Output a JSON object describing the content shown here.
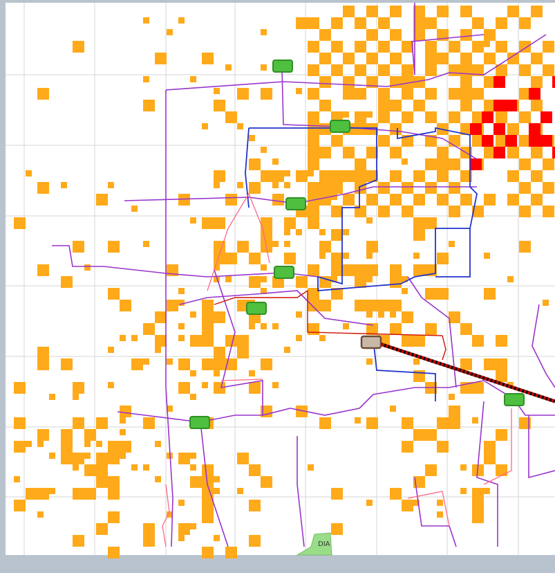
{
  "map": {
    "label": "DIA"
  }
}
